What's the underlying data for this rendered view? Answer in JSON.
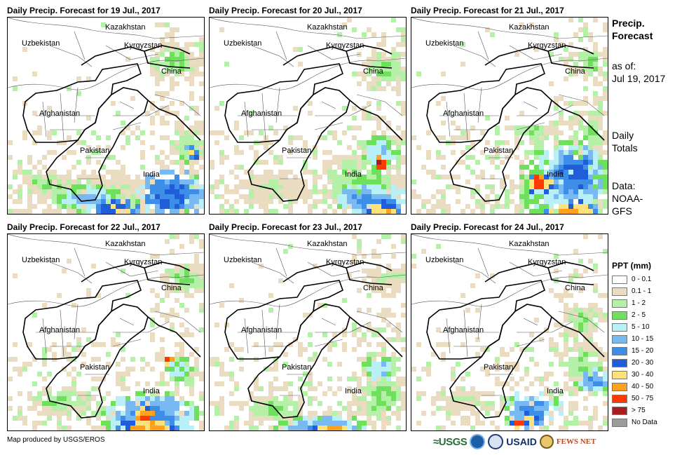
{
  "panels": [
    {
      "title": "Daily Precip. Forecast for 19 Jul., 2017"
    },
    {
      "title": "Daily Precip. Forecast for 20 Jul., 2017"
    },
    {
      "title": "Daily Precip. Forecast for 21 Jul., 2017"
    },
    {
      "title": "Daily Precip. Forecast for 22 Jul., 2017"
    },
    {
      "title": "Daily Precip. Forecast for 23 Jul., 2017"
    },
    {
      "title": "Daily Precip. Forecast for 24 Jul., 2017"
    }
  ],
  "map_labels": {
    "kazakhstan": "Kazakhstan",
    "uzbekistan": "Uzbekistan",
    "kyrgyzstan": "Kyrgyzstan",
    "china": "China",
    "afghanistan": "Afghanistan",
    "pakistan": "Pakistan",
    "india": "India"
  },
  "sidebar": {
    "title_line1": "Precip.",
    "title_line2": "Forecast",
    "asof_line1": "as of:",
    "asof_line2": "Jul 19, 2017",
    "totals_line1": "Daily",
    "totals_line2": "Totals",
    "data_line1": "Data:",
    "data_line2": "NOAA-",
    "data_line3": "GFS"
  },
  "legend": {
    "title": "PPT (mm)",
    "items": [
      {
        "label": "0 - 0.1",
        "color": "#ffffff"
      },
      {
        "label": "0.1 - 1",
        "color": "#eadcc0"
      },
      {
        "label": "1 - 2",
        "color": "#b4f0a8"
      },
      {
        "label": "2 - 5",
        "color": "#6fe05c"
      },
      {
        "label": "5 - 10",
        "color": "#b9f0f7"
      },
      {
        "label": "10 - 15",
        "color": "#79b9f2"
      },
      {
        "label": "15 - 20",
        "color": "#3d8ee8"
      },
      {
        "label": "20 - 30",
        "color": "#1f5ed8"
      },
      {
        "label": "30 - 40",
        "color": "#ffe17a"
      },
      {
        "label": "40 - 50",
        "color": "#ffa11a"
      },
      {
        "label": "50 - 75",
        "color": "#ff3a00"
      },
      {
        "label": "> 75",
        "color": "#a81e1e"
      },
      {
        "label": "No Data",
        "color": "#9c9c9c"
      }
    ]
  },
  "footer": {
    "credit": "Map produced by USGS/EROS",
    "logo_usgs": "≈USGS",
    "logo_usaid": "USAID",
    "logo_fews": "FEWS NET"
  }
}
